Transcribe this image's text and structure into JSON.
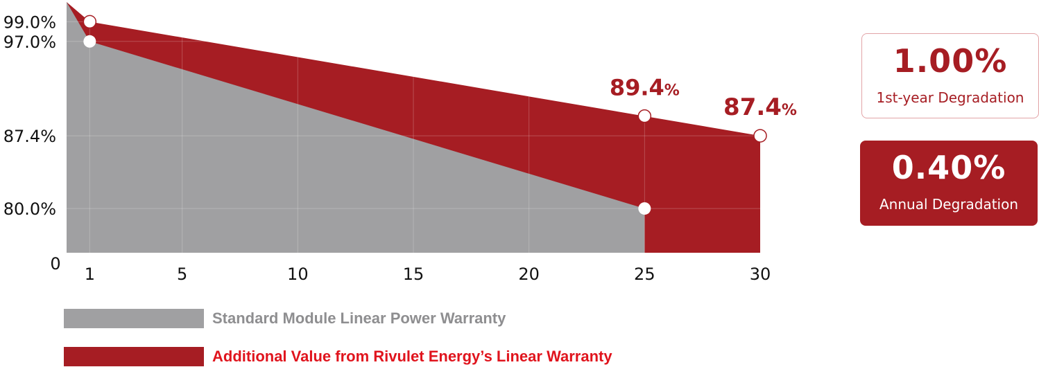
{
  "chart_data": {
    "type": "area",
    "x_ticks": [
      1,
      5,
      10,
      15,
      20,
      25,
      30
    ],
    "y_ticks": [
      {
        "value": 99.0,
        "label": "99.0%"
      },
      {
        "value": 97.0,
        "label": "97.0%"
      },
      {
        "value": 87.4,
        "label": "87.4%"
      },
      {
        "value": 80.0,
        "label": "80.0%"
      }
    ],
    "y_zero_label": "0",
    "xlim": [
      0,
      30
    ],
    "ylim": [
      75.5,
      101
    ],
    "grid": "vertical",
    "series": [
      {
        "name": "Standard Module Linear Power Warranty",
        "color": "#a0a0a2",
        "points": [
          [
            0,
            101
          ],
          [
            1,
            97.0
          ],
          [
            25,
            80.0
          ]
        ],
        "end_x": 25
      },
      {
        "name": "Additional Value from Rivulet Energy’s Linear Warranty",
        "color": "#a61d23",
        "points": [
          [
            0,
            101
          ],
          [
            1,
            99.0
          ],
          [
            25,
            89.4
          ],
          [
            30,
            87.4
          ]
        ],
        "end_x": 30
      }
    ],
    "markers": [
      {
        "x": 1,
        "y": 99.0
      },
      {
        "x": 1,
        "y": 97.0
      },
      {
        "x": 25,
        "y": 89.4
      },
      {
        "x": 25,
        "y": 80.0
      },
      {
        "x": 30,
        "y": 87.4
      }
    ],
    "annotations": [
      {
        "x": 25,
        "y": 89.4,
        "main": "89.4",
        "unit": "%"
      },
      {
        "x": 30,
        "y": 87.4,
        "main": "87.4",
        "unit": "%"
      }
    ]
  },
  "stats": [
    {
      "value": "1.00%",
      "label": "1st-year Degradation"
    },
    {
      "value": "0.40%",
      "label": "Annual Degradation"
    }
  ],
  "legend": [
    {
      "label": "Standard Module Linear Power Warranty",
      "color": "#a0a0a2",
      "text_color": "#8e8e90"
    },
    {
      "label": "Additional Value from Rivulet Energy’s Linear Warranty",
      "color": "#a61d23",
      "text_color": "#e0141d"
    }
  ]
}
